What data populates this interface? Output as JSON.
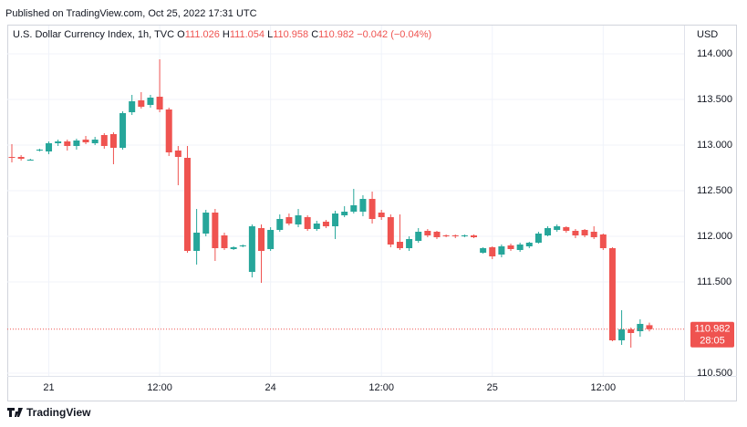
{
  "published": "Published on TradingView.com, Oct 25, 2022 17:31 UTC",
  "legend": {
    "symbol": "U.S. Dollar Currency Index, 1h, TVC",
    "ohlc": [
      {
        "label": "O",
        "value": "111.026"
      },
      {
        "label": "H",
        "value": "111.054"
      },
      {
        "label": "L",
        "value": "110.958"
      },
      {
        "label": "C",
        "value": "110.982"
      }
    ],
    "change": "−0.042 (−0.04%)"
  },
  "currency": "USD",
  "brand": "TradingView",
  "chart_data": {
    "type": "candlestick",
    "up_color": "#26a69a",
    "down_color": "#ef5350",
    "grid": true,
    "categories": [
      null,
      null,
      null,
      null,
      "21",
      null,
      null,
      null,
      null,
      null,
      null,
      null,
      null,
      null,
      null,
      null,
      "12:00",
      null,
      null,
      null,
      null,
      null,
      null,
      null,
      null,
      null,
      null,
      null,
      "24",
      null,
      null,
      null,
      null,
      null,
      null,
      null,
      null,
      null,
      null,
      null,
      "12:00",
      null,
      null,
      null,
      null,
      null,
      null,
      null,
      null,
      null,
      null,
      null,
      "25",
      null,
      null,
      null,
      null,
      null,
      null,
      null,
      null,
      null,
      null,
      null,
      "12:00",
      null,
      null,
      null,
      null,
      null
    ],
    "open": [
      112.87,
      112.87,
      112.84,
      112.94,
      112.93,
      113.02,
      113.04,
      112.99,
      113.06,
      113.02,
      113.11,
      113.12,
      112.97,
      113.36,
      113.49,
      113.44,
      113.53,
      113.39,
      112.94,
      112.86,
      111.84,
      112.03,
      112.26,
      112.01,
      111.86,
      111.89,
      111.61,
      112.09,
      111.86,
      112.07,
      112.21,
      112.13,
      112.21,
      112.08,
      112.16,
      112.11,
      112.23,
      112.27,
      112.27,
      112.41,
      112.26,
      112.21,
      111.94,
      111.87,
      111.95,
      112.06,
      112.05,
      112.01,
      112.01,
      112.0,
      112.01,
      111.82,
      111.88,
      111.8,
      111.9,
      111.85,
      111.89,
      111.93,
      112.01,
      112.07,
      112.1,
      112.06,
      112.07,
      112.05,
      112.02,
      111.87,
      110.86,
      110.98,
      110.96,
      111.026
    ],
    "high": [
      113.01,
      112.89,
      112.85,
      112.96,
      113.04,
      113.06,
      113.06,
      113.07,
      113.1,
      113.09,
      113.13,
      113.14,
      113.37,
      113.55,
      113.58,
      113.55,
      113.94,
      113.41,
      112.99,
      112.99,
      112.3,
      112.29,
      112.3,
      112.04,
      111.89,
      111.91,
      112.13,
      112.13,
      112.1,
      112.24,
      112.25,
      112.3,
      112.23,
      112.17,
      112.18,
      112.28,
      112.33,
      112.52,
      112.45,
      112.49,
      112.29,
      112.24,
      112.24,
      112.0,
      112.09,
      112.08,
      112.06,
      112.02,
      112.02,
      112.02,
      112.02,
      111.88,
      111.89,
      111.91,
      111.92,
      111.93,
      111.94,
      112.05,
      112.11,
      112.13,
      112.11,
      112.08,
      112.08,
      112.11,
      112.03,
      111.88,
      111.19,
      111.0,
      111.09,
      111.054
    ],
    "low": [
      112.81,
      112.83,
      112.83,
      112.93,
      112.9,
      112.99,
      112.94,
      112.95,
      113.01,
      113.0,
      112.96,
      112.79,
      112.95,
      113.33,
      113.4,
      113.41,
      113.36,
      112.88,
      112.56,
      111.82,
      111.69,
      112.0,
      111.73,
      111.85,
      111.85,
      111.88,
      111.55,
      111.49,
      111.84,
      112.05,
      112.12,
      112.1,
      112.06,
      112.06,
      112.09,
      111.97,
      112.21,
      112.25,
      112.22,
      112.14,
      112.18,
      111.88,
      111.85,
      111.84,
      111.93,
      111.99,
      111.97,
      111.99,
      111.98,
      111.99,
      111.98,
      111.81,
      111.75,
      111.77,
      111.84,
      111.83,
      111.87,
      111.92,
      112.0,
      112.05,
      112.04,
      111.98,
      111.99,
      111.97,
      111.85,
      110.85,
      110.81,
      110.78,
      110.9,
      110.958
    ],
    "close": [
      112.86,
      112.85,
      112.84,
      112.95,
      113.02,
      113.04,
      112.99,
      113.05,
      113.03,
      113.06,
      112.99,
      112.97,
      113.35,
      113.48,
      113.42,
      113.52,
      113.39,
      112.92,
      112.87,
      111.84,
      112.04,
      112.26,
      111.87,
      111.87,
      111.88,
      111.9,
      112.11,
      111.84,
      112.07,
      112.19,
      112.14,
      112.23,
      112.08,
      112.14,
      112.11,
      112.25,
      112.27,
      112.34,
      112.41,
      112.19,
      112.21,
      111.91,
      111.87,
      111.97,
      112.05,
      112.01,
      111.99,
      112.0,
      112.0,
      112.01,
      111.99,
      111.87,
      111.78,
      111.89,
      111.86,
      111.91,
      111.93,
      112.03,
      112.09,
      112.11,
      112.06,
      112.01,
      112.01,
      111.99,
      111.87,
      110.86,
      110.98,
      110.94,
      111.04,
      110.982
    ],
    "ylim": [
      110.47,
      114.32
    ],
    "yticks": [
      {
        "value": 110.5,
        "label": "110.500"
      },
      {
        "value": 111.5,
        "label": "111.500"
      },
      {
        "value": 112,
        "label": "112.000"
      },
      {
        "value": 112.5,
        "label": "112.500"
      },
      {
        "value": 113,
        "label": "113.000"
      },
      {
        "value": 113.5,
        "label": "113.500"
      },
      {
        "value": 114,
        "label": "114.000"
      }
    ],
    "last_price": {
      "value": 110.982,
      "label": "110.982"
    },
    "countdown": "28:05"
  }
}
